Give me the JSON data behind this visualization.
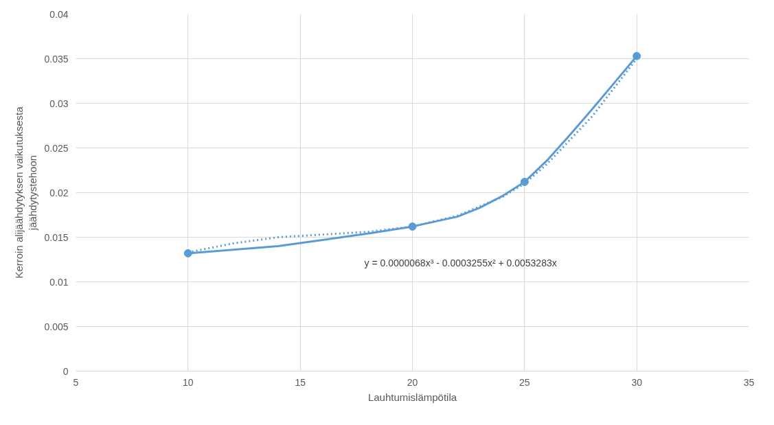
{
  "chart_data": {
    "type": "line",
    "xlabel": "Lauhtumislämpötila",
    "ylabel": "Kerroin alijäähdytyksen vaikutuksesta\njäähdytystehoon",
    "xlim": [
      5,
      35
    ],
    "xticks": [
      5,
      10,
      15,
      20,
      25,
      30,
      35
    ],
    "ylim": [
      0,
      0.04
    ],
    "yticks": [
      0,
      {
        "value": 0.005,
        "label": "0.005"
      },
      0.01,
      {
        "value": 0.015,
        "label": "0.015"
      },
      0.02,
      {
        "value": 0.025,
        "label": "0.025"
      },
      0.03,
      {
        "value": 0.035,
        "label": "0.035"
      },
      0.04
    ],
    "grid": true,
    "marker": "none",
    "line_style": "solid",
    "series": [
      {
        "color": "#5b9bd5",
        "x": [
          10,
          12,
          14,
          16,
          18,
          20,
          22,
          23,
          24,
          25,
          26,
          27,
          28,
          29,
          30
        ],
        "values": [
          0.0132,
          0.0136,
          0.014,
          0.0147,
          0.0154,
          0.0162,
          0.0173,
          0.0183,
          0.0196,
          0.0212,
          0.0236,
          0.0264,
          0.0293,
          0.0323,
          0.0353
        ]
      },
      {
        "color": "#5b9bd5",
        "type": "scatter",
        "marker": "circle",
        "x": [
          10,
          20,
          25,
          30
        ],
        "values": [
          0.0132,
          0.0162,
          0.0212,
          0.0353
        ]
      },
      {
        "color": "#5b9bd5",
        "type": "line",
        "marker": "none",
        "line_style": "dotted",
        "x": [
          10,
          12,
          14,
          16,
          18,
          20,
          22,
          24,
          25,
          26,
          28,
          30
        ],
        "values": [
          0.0133,
          0.0143,
          0.015,
          0.0153,
          0.0156,
          0.0162,
          0.0174,
          0.0195,
          0.021,
          0.0232,
          0.0285,
          0.035
        ]
      }
    ],
    "annotations": [
      "y = 0.0000068x³ - 0.0003255x² + 0.0053283x"
    ]
  }
}
